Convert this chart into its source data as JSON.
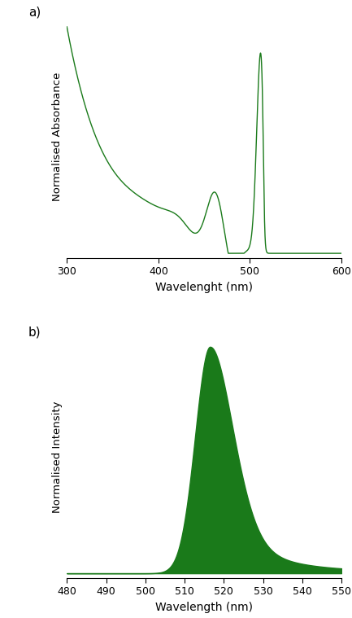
{
  "line_color": "#1a7a1a",
  "fill_color": "#1a7a1a",
  "bg_color": "#ffffff",
  "panel_a": {
    "xlabel": "Wavelenght (nm)",
    "ylabel": "Normalised Absorbance",
    "xlim": [
      300,
      600
    ],
    "xticks": [
      300,
      400,
      500,
      600
    ],
    "label": "a)"
  },
  "panel_b": {
    "xlabel": "Wavelength (nm)",
    "ylabel": "Normalised Intensity",
    "xlim": [
      480,
      550
    ],
    "xticks": [
      480,
      490,
      500,
      510,
      520,
      530,
      540,
      550
    ],
    "label": "b)"
  }
}
